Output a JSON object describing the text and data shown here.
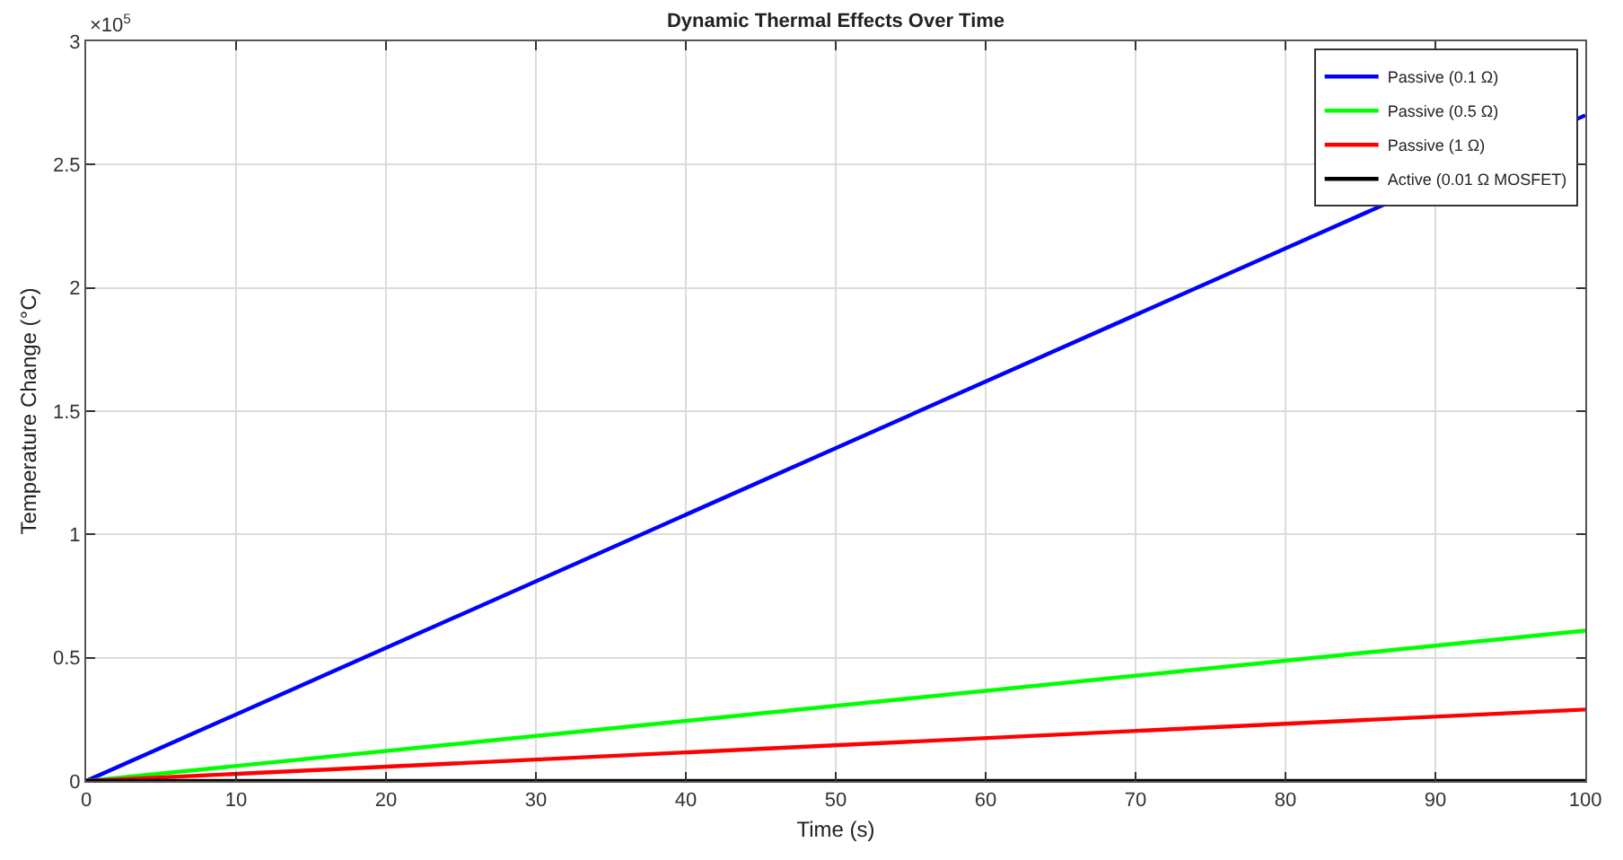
{
  "chart_data": {
    "type": "line",
    "title": "Dynamic Thermal Effects Over Time",
    "xlabel": "Time (s)",
    "ylabel": "Temperature Change (°C)",
    "annotations": [
      "×10$^{5}$"
    ],
    "x": [
      0,
      100
    ],
    "series": [
      {
        "name": "Passive (0.1 Ω)",
        "color": "#0000ff",
        "values": [
          0,
          2.7
        ]
      },
      {
        "name": "Passive (0.5 Ω)",
        "color": "#00ff00",
        "values": [
          0,
          0.61
        ]
      },
      {
        "name": "Passive (1 Ω)",
        "color": "#ff0000",
        "values": [
          0,
          0.29
        ]
      },
      {
        "name": "Active (0.01 Ω MOSFET)",
        "color": "#000000",
        "values": [
          0,
          0
        ]
      }
    ],
    "xlim": [
      0,
      100
    ],
    "xticks": [
      0,
      10,
      20,
      30,
      40,
      50,
      60,
      70,
      80,
      90,
      100
    ],
    "ylim": [
      0,
      3
    ],
    "yticks": [
      0,
      0.5,
      1,
      1.5,
      2,
      2.5,
      3
    ],
    "grid": true,
    "legend": "top right",
    "marker": "none",
    "line_style": "solid"
  }
}
